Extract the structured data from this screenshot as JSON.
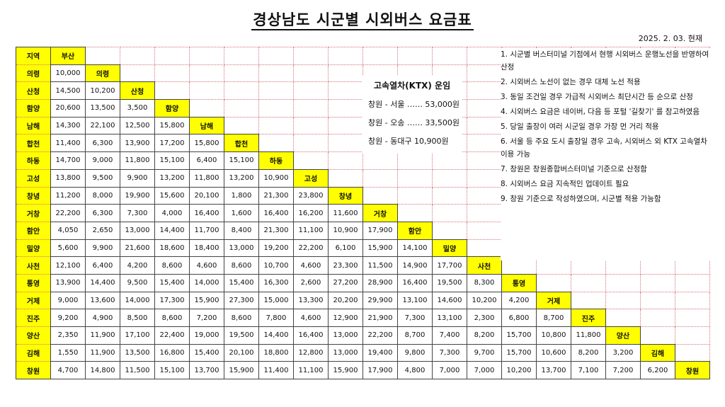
{
  "title": "경상남도 시군별 시외버스 요금표",
  "date": "2025. 2. 03. 현재",
  "rows": [
    {
      "name": "지역",
      "fares": []
    },
    {
      "name": "의령",
      "fares": [
        "10,000"
      ]
    },
    {
      "name": "산청",
      "fares": [
        "14,500",
        "10,200"
      ]
    },
    {
      "name": "함양",
      "fares": [
        "20,600",
        "13,500",
        "3,500"
      ]
    },
    {
      "name": "남해",
      "fares": [
        "14,300",
        "22,100",
        "12,500",
        "15,800"
      ]
    },
    {
      "name": "합천",
      "fares": [
        "11,400",
        "6,300",
        "13,900",
        "17,200",
        "15,800"
      ]
    },
    {
      "name": "하동",
      "fares": [
        "14,700",
        "9,000",
        "11,800",
        "15,100",
        "6,400",
        "15,100"
      ]
    },
    {
      "name": "고성",
      "fares": [
        "13,800",
        "9,500",
        "9,900",
        "13,200",
        "11,800",
        "13,200",
        "10,900"
      ]
    },
    {
      "name": "창녕",
      "fares": [
        "11,200",
        "8,000",
        "19,900",
        "15,600",
        "20,100",
        "1,800",
        "21,300",
        "23,800"
      ]
    },
    {
      "name": "거창",
      "fares": [
        "22,200",
        "6,300",
        "7,300",
        "4,000",
        "16,400",
        "1,600",
        "16,400",
        "16,200",
        "11,600"
      ]
    },
    {
      "name": "함안",
      "fares": [
        "4,050",
        "2,650",
        "13,000",
        "14,400",
        "11,700",
        "8,400",
        "21,300",
        "11,100",
        "10,900",
        "17,900"
      ]
    },
    {
      "name": "밀양",
      "fares": [
        "5,600",
        "9,900",
        "21,600",
        "18,600",
        "18,400",
        "13,000",
        "19,200",
        "22,200",
        "6,100",
        "15,900",
        "14,100"
      ]
    },
    {
      "name": "사천",
      "fares": [
        "12,100",
        "6,400",
        "4,200",
        "8,600",
        "4,600",
        "8,600",
        "10,700",
        "4,600",
        "23,300",
        "11,500",
        "14,900",
        "17,700"
      ]
    },
    {
      "name": "통영",
      "fares": [
        "13,900",
        "14,400",
        "9,500",
        "15,400",
        "14,000",
        "15,400",
        "16,300",
        "2,600",
        "27,200",
        "28,900",
        "16,400",
        "19,500",
        "8,300"
      ]
    },
    {
      "name": "거제",
      "fares": [
        "9,000",
        "13,600",
        "14,000",
        "17,300",
        "15,900",
        "27,300",
        "15,000",
        "13,300",
        "20,200",
        "29,900",
        "13,100",
        "14,600",
        "10,200",
        "4,200"
      ]
    },
    {
      "name": "진주",
      "fares": [
        "9,200",
        "4,900",
        "8,500",
        "8,600",
        "7,200",
        "8,600",
        "7,800",
        "4,600",
        "12,900",
        "21,900",
        "7,300",
        "13,100",
        "2,300",
        "6,800",
        "8,700"
      ]
    },
    {
      "name": "양산",
      "fares": [
        "2,350",
        "11,900",
        "17,100",
        "22,400",
        "19,000",
        "19,500",
        "14,400",
        "16,400",
        "13,000",
        "22,200",
        "8,700",
        "7,400",
        "8,200",
        "15,700",
        "10,800",
        "11,800"
      ]
    },
    {
      "name": "김해",
      "fares": [
        "1,550",
        "11,900",
        "13,500",
        "16,800",
        "15,400",
        "20,100",
        "18,800",
        "12,800",
        "13,000",
        "19,400",
        "9,800",
        "7,300",
        "9,700",
        "15,700",
        "10,600",
        "8,200",
        "3,200"
      ]
    },
    {
      "name": "창원",
      "fares": [
        "4,700",
        "14,800",
        "11,500",
        "15,100",
        "13,700",
        "15,900",
        "11,400",
        "11,100",
        "15,900",
        "17,900",
        "4,800",
        "7,000",
        "7,000",
        "10,200",
        "13,700",
        "7,100",
        "7,200",
        "6,200"
      ]
    }
  ],
  "diag": [
    "부산",
    "의령",
    "산청",
    "함양",
    "남해",
    "합천",
    "하동",
    "고성",
    "창녕",
    "거창",
    "함안",
    "밀양",
    "사천",
    "통영",
    "거제",
    "진주",
    "양산",
    "김해",
    "창원"
  ],
  "ktx": {
    "title": "고속열차(KTX) 운임",
    "lines": [
      "창원 - 서울 …… 53,000원",
      "창원 - 오송 …… 33,500원",
      "창원 - 동대구 10,900원"
    ]
  },
  "notes": [
    "1. 시군별 버스터미널 기점에서 현행 시외버스 운행노선을 반영하여 산정",
    "2. 시외버스 노선이 없는 경우 대체 노선 적용",
    "3. 동일 조건일 경우 가급적 시외버스 최단시간 등 순으로 산정",
    "4. 시외버스 요금은 네이버, 다음 등 포털 '길찾기' 를 참고하였음",
    "5. 당일 출장이 여러 시군일 경우 가장 먼 거리 적용",
    "6. 서울 등 주요 도시 출장일 경우 고속, 시외버스 외 KTX 고속열차 이용 가능",
    "7. 창원은 창원종합버스터미널 기준으로 산정함",
    "8. 시외버스 요금 지속적인 업데이트 필요",
    "9. 창원 기준으로 작성하였으며, 시군별 적용 가능함"
  ]
}
